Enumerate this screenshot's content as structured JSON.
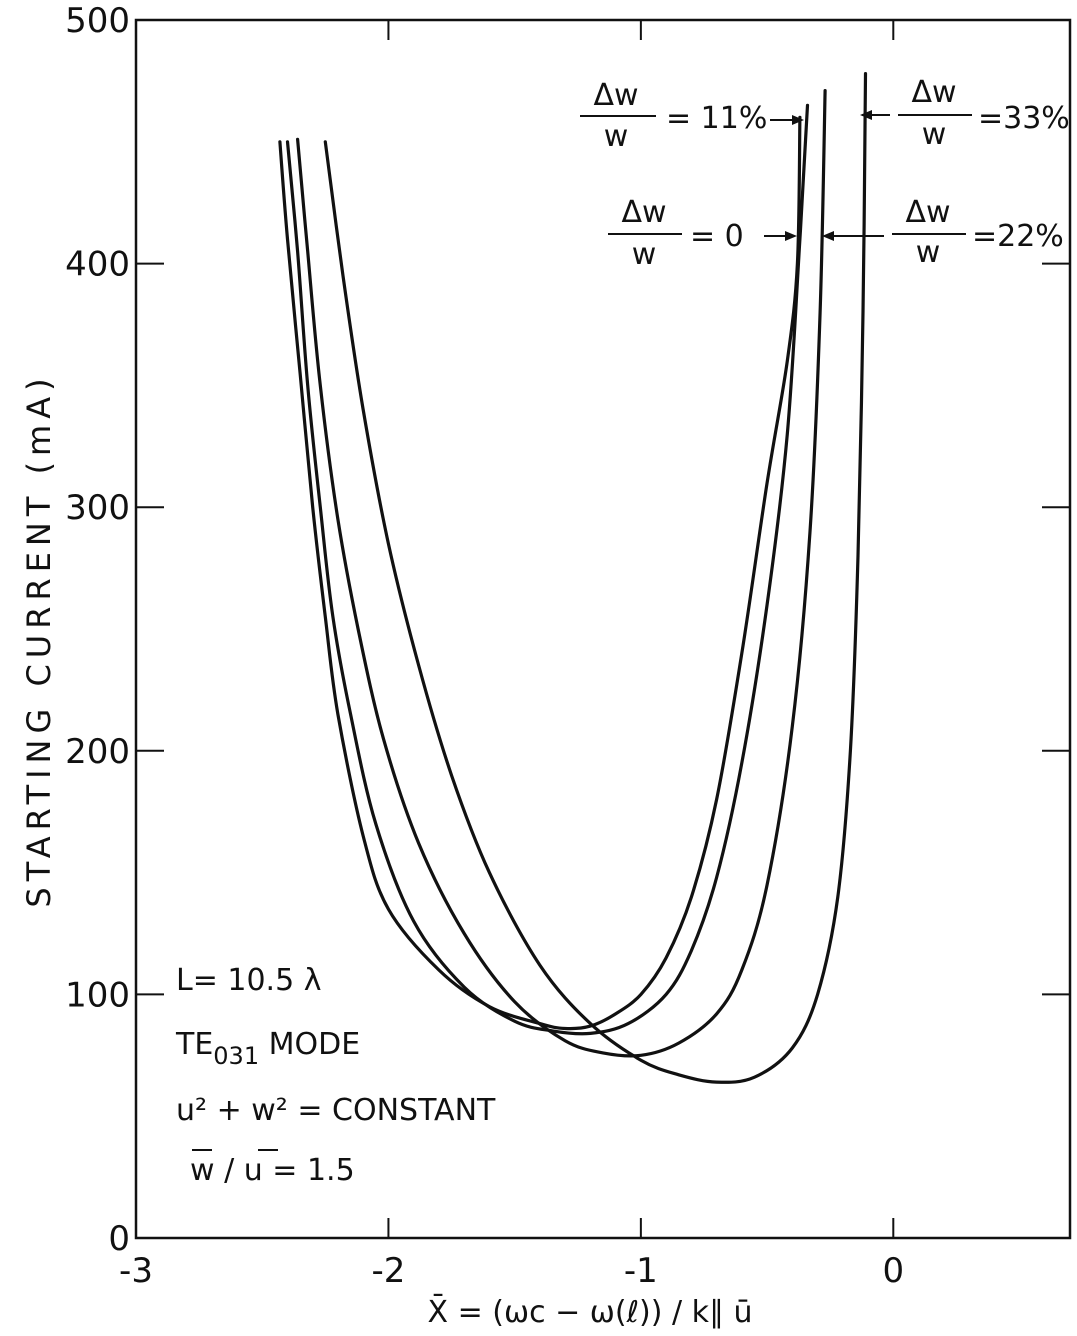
{
  "chart_data": {
    "type": "line",
    "title": "",
    "xlabel": "X̄ = (ωc − ω(ℓ)) / k∥ ū",
    "ylabel": "STARTING CURRENT (mA)",
    "xlim": [
      -3,
      0.7
    ],
    "ylim": [
      0,
      500
    ],
    "x_ticks": [
      -3,
      -2,
      -1,
      0
    ],
    "x_tick_labels": [
      "-3",
      "-2",
      "-1",
      "0"
    ],
    "y_ticks": [
      0,
      100,
      200,
      300,
      400,
      500
    ],
    "y_tick_labels": [
      "0",
      "100",
      "200",
      "300",
      "400",
      "500"
    ],
    "grid": false,
    "series": [
      {
        "name": "Δw/w = 0",
        "points": [
          [
            -2.43,
            450
          ],
          [
            -2.4,
            410
          ],
          [
            -2.35,
            355
          ],
          [
            -2.3,
            300
          ],
          [
            -2.25,
            255
          ],
          [
            -2.2,
            215
          ],
          [
            -2.1,
            165
          ],
          [
            -2.0,
            135
          ],
          [
            -1.8,
            110
          ],
          [
            -1.6,
            95
          ],
          [
            -1.4,
            88
          ],
          [
            -1.3,
            86
          ],
          [
            -1.2,
            87
          ],
          [
            -1.1,
            92
          ],
          [
            -1.0,
            100
          ],
          [
            -0.9,
            115
          ],
          [
            -0.8,
            140
          ],
          [
            -0.7,
            180
          ],
          [
            -0.6,
            240
          ],
          [
            -0.5,
            310
          ],
          [
            -0.42,
            360
          ],
          [
            -0.38,
            400
          ],
          [
            -0.37,
            460
          ]
        ]
      },
      {
        "name": "Δw/w = 11%",
        "points": [
          [
            -2.4,
            450
          ],
          [
            -2.36,
            405
          ],
          [
            -2.32,
            350
          ],
          [
            -2.27,
            300
          ],
          [
            -2.22,
            255
          ],
          [
            -2.15,
            215
          ],
          [
            -2.05,
            170
          ],
          [
            -1.9,
            130
          ],
          [
            -1.7,
            103
          ],
          [
            -1.5,
            89
          ],
          [
            -1.35,
            85
          ],
          [
            -1.2,
            84
          ],
          [
            -1.05,
            88
          ],
          [
            -0.9,
            100
          ],
          [
            -0.8,
            118
          ],
          [
            -0.7,
            148
          ],
          [
            -0.6,
            195
          ],
          [
            -0.5,
            260
          ],
          [
            -0.42,
            330
          ],
          [
            -0.37,
            410
          ],
          [
            -0.34,
            465
          ]
        ]
      },
      {
        "name": "Δw/w = 22%",
        "points": [
          [
            -2.36,
            451
          ],
          [
            -2.32,
            405
          ],
          [
            -2.27,
            350
          ],
          [
            -2.2,
            295
          ],
          [
            -2.12,
            250
          ],
          [
            -2.02,
            205
          ],
          [
            -1.88,
            162
          ],
          [
            -1.7,
            125
          ],
          [
            -1.5,
            97
          ],
          [
            -1.3,
            81
          ],
          [
            -1.15,
            76
          ],
          [
            -1.0,
            75
          ],
          [
            -0.85,
            80
          ],
          [
            -0.7,
            92
          ],
          [
            -0.6,
            110
          ],
          [
            -0.5,
            145
          ],
          [
            -0.4,
            210
          ],
          [
            -0.33,
            290
          ],
          [
            -0.29,
            380
          ],
          [
            -0.27,
            471
          ]
        ]
      },
      {
        "name": "Δw/w = 33%",
        "points": [
          [
            -2.25,
            450
          ],
          [
            -2.18,
            395
          ],
          [
            -2.1,
            340
          ],
          [
            -2.0,
            285
          ],
          [
            -1.88,
            235
          ],
          [
            -1.75,
            190
          ],
          [
            -1.6,
            150
          ],
          [
            -1.4,
            112
          ],
          [
            -1.2,
            88
          ],
          [
            -1.0,
            73
          ],
          [
            -0.85,
            67
          ],
          [
            -0.7,
            64
          ],
          [
            -0.55,
            66
          ],
          [
            -0.4,
            78
          ],
          [
            -0.3,
            100
          ],
          [
            -0.22,
            140
          ],
          [
            -0.17,
            200
          ],
          [
            -0.14,
            280
          ],
          [
            -0.12,
            380
          ],
          [
            -0.11,
            478
          ]
        ]
      }
    ],
    "annotations": [
      {
        "numerator": "Δw",
        "denominator": "w",
        "value": "= 11%"
      },
      {
        "numerator": "Δw",
        "denominator": "w",
        "value": "=33%"
      },
      {
        "numerator": "Δw",
        "denominator": "w",
        "value": "= 0"
      },
      {
        "numerator": "Δw",
        "denominator": "w",
        "value": "=22%"
      }
    ],
    "legend_text": {
      "line1": "L= 10.5 λ",
      "line2_prefix": "TE",
      "line2_sub": "031",
      "line2_suffix": " MODE",
      "line3": "u² + w² = CONSTANT",
      "line4_a": "w",
      "line4_b": " / ",
      "line4_c": "u",
      "line4_d": " = 1.5"
    }
  }
}
